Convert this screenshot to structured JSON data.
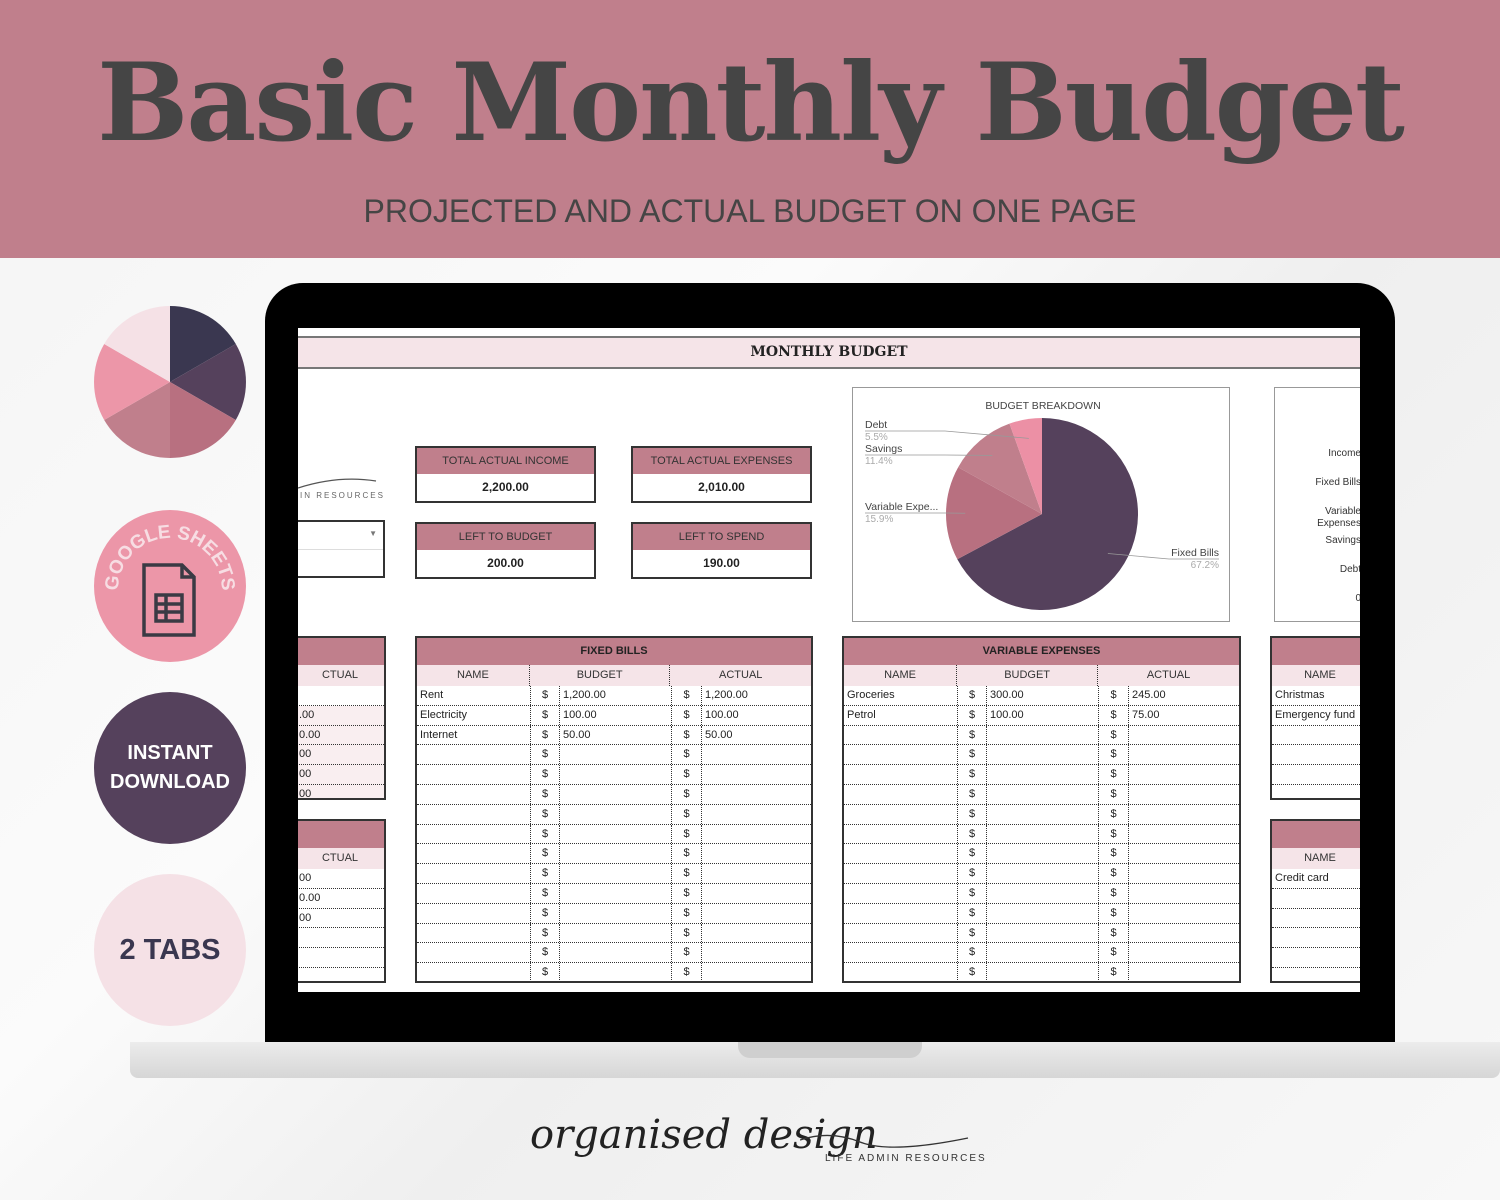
{
  "banner": {
    "title": "Basic Monthly Budget",
    "subtitle": "PROJECTED AND ACTUAL BUDGET ON ONE PAGE"
  },
  "colors": {
    "band": "#c07f8c",
    "plum": "#55415c",
    "rose": "#b87080",
    "mauve": "#c07f8c",
    "pink": "#ec90a5",
    "blush": "#f5e4e8",
    "navy": "#3a3750"
  },
  "badges": {
    "sheets": "GOOGLE SHEETS",
    "sheets_icon": "spreadsheet-file-icon",
    "download": [
      "INSTANT",
      "DOWNLOAD"
    ],
    "tabs": "2 TABS"
  },
  "sheet": {
    "title": "MONTHLY BUDGET",
    "logo_partial": "IN RESOURCES",
    "kpis": [
      {
        "label": "TOTAL ACTUAL INCOME",
        "value": "2,200.00"
      },
      {
        "label": "TOTAL ACTUAL EXPENSES",
        "value": "2,010.00"
      },
      {
        "label": "LEFT TO BUDGET",
        "value": "200.00"
      },
      {
        "label": "LEFT TO SPEND",
        "value": "190.00"
      }
    ],
    "right_chart_labels": [
      "Income",
      "Fixed Bills",
      "Variable Expenses",
      "Savings",
      "Debt",
      "0"
    ],
    "left_table_1": {
      "header": "CTUAL",
      "cells": [
        "",
        ".00",
        "0.00",
        "00",
        "00",
        "00"
      ]
    },
    "left_table_2": {
      "header": "CTUAL",
      "cells": [
        "00",
        "0.00",
        "00",
        "",
        "",
        ""
      ]
    },
    "fixed_bills": {
      "title": "FIXED BILLS",
      "columns": [
        "NAME",
        "BUDGET",
        "ACTUAL"
      ],
      "currency": "$",
      "rows": [
        [
          "Rent",
          "1,200.00",
          "1,200.00"
        ],
        [
          "Electricity",
          "100.00",
          "100.00"
        ],
        [
          "Internet",
          "50.00",
          "50.00"
        ],
        [
          "",
          "",
          ""
        ],
        [
          "",
          "",
          ""
        ],
        [
          "",
          "",
          ""
        ],
        [
          "",
          "",
          ""
        ],
        [
          "",
          "",
          ""
        ],
        [
          "",
          "",
          ""
        ],
        [
          "",
          "",
          ""
        ],
        [
          "",
          "",
          ""
        ],
        [
          "",
          "",
          ""
        ],
        [
          "",
          "",
          ""
        ],
        [
          "",
          "",
          ""
        ],
        [
          "",
          "",
          ""
        ]
      ]
    },
    "variable_expenses": {
      "title": "VARIABLE EXPENSES",
      "columns": [
        "NAME",
        "BUDGET",
        "ACTUAL"
      ],
      "currency": "$",
      "rows": [
        [
          "Groceries",
          "300.00",
          "245.00"
        ],
        [
          "Petrol",
          "100.00",
          "75.00"
        ],
        [
          "",
          "",
          ""
        ],
        [
          "",
          "",
          ""
        ],
        [
          "",
          "",
          ""
        ],
        [
          "",
          "",
          ""
        ],
        [
          "",
          "",
          ""
        ],
        [
          "",
          "",
          ""
        ],
        [
          "",
          "",
          ""
        ],
        [
          "",
          "",
          ""
        ],
        [
          "",
          "",
          ""
        ],
        [
          "",
          "",
          ""
        ],
        [
          "",
          "",
          ""
        ],
        [
          "",
          "",
          ""
        ],
        [
          "",
          "",
          ""
        ]
      ]
    },
    "right_table_1": {
      "header": "NAME",
      "cells": [
        "Christmas",
        "Emergency fund",
        "",
        "",
        "",
        ""
      ]
    },
    "right_table_2": {
      "header": "NAME",
      "cells": [
        "Credit card",
        "",
        "",
        "",
        "",
        ""
      ]
    }
  },
  "chart_data": {
    "type": "pie",
    "title": "BUDGET BREAKDOWN",
    "categories": [
      "Fixed Bills",
      "Variable Expe...",
      "Savings",
      "Debt"
    ],
    "values": [
      67.2,
      15.9,
      11.4,
      5.5
    ],
    "labels": [
      "67.2%",
      "15.9%",
      "11.4%",
      "5.5%"
    ],
    "colors": [
      "#55415c",
      "#b87080",
      "#c07f8c",
      "#ec90a5"
    ]
  },
  "footer": {
    "brand": "organised design",
    "tagline": "LIFE ADMIN RESOURCES"
  }
}
